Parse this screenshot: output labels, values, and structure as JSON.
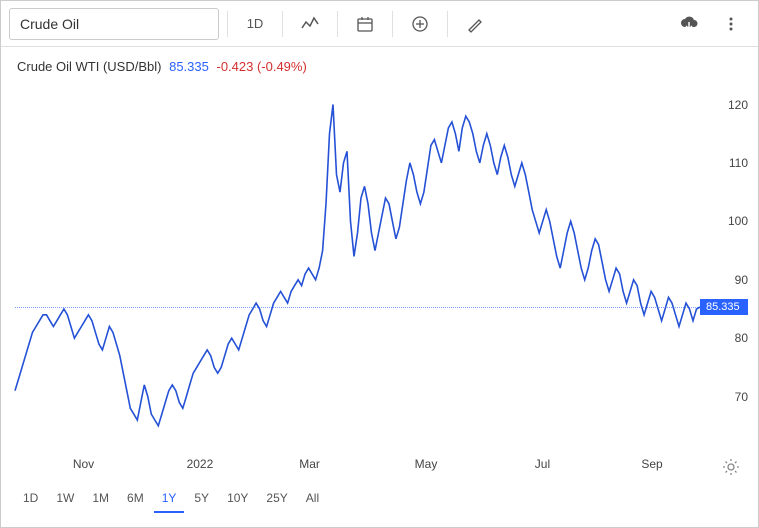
{
  "toolbar": {
    "symbol_value": "Crude Oil",
    "interval_label": "1D"
  },
  "header": {
    "name": "Crude Oil WTI (USD/Bbl)",
    "price": "85.335",
    "change": "-0.423 (-0.49%)"
  },
  "chart": {
    "type": "line",
    "line_color": "#2451d6",
    "line_width": 1.6,
    "background_color": "#ffffff",
    "current_price": 85.335,
    "current_line_color": "#2962ff",
    "y_axis": {
      "min": 60,
      "max": 123,
      "ticks": [
        70,
        80,
        90,
        100,
        110,
        120
      ],
      "fontsize": 12,
      "color": "#444444"
    },
    "x_axis": {
      "ticks": [
        {
          "pos": 0.1,
          "label": "Nov"
        },
        {
          "pos": 0.27,
          "label": "2022"
        },
        {
          "pos": 0.43,
          "label": "Mar"
        },
        {
          "pos": 0.6,
          "label": "May"
        },
        {
          "pos": 0.77,
          "label": "Jul"
        },
        {
          "pos": 0.93,
          "label": "Sep"
        }
      ],
      "fontsize": 12,
      "color": "#444444"
    },
    "series": [
      71,
      73,
      75,
      77,
      79,
      81,
      82,
      83,
      84,
      84,
      83,
      82,
      83,
      84,
      85,
      84,
      82,
      80,
      81,
      82,
      83,
      84,
      83,
      81,
      79,
      78,
      80,
      82,
      81,
      79,
      77,
      74,
      71,
      68,
      67,
      66,
      69,
      72,
      70,
      67,
      66,
      65,
      67,
      69,
      71,
      72,
      71,
      69,
      68,
      70,
      72,
      74,
      75,
      76,
      77,
      78,
      77,
      75,
      74,
      75,
      77,
      79,
      80,
      79,
      78,
      80,
      82,
      84,
      85,
      86,
      85,
      83,
      82,
      84,
      86,
      87,
      88,
      87,
      86,
      88,
      89,
      90,
      89,
      91,
      92,
      91,
      90,
      92,
      95,
      103,
      115,
      120,
      108,
      105,
      110,
      112,
      100,
      94,
      98,
      104,
      106,
      103,
      98,
      95,
      98,
      101,
      104,
      103,
      100,
      97,
      99,
      103,
      107,
      110,
      108,
      105,
      103,
      105,
      109,
      113,
      114,
      112,
      110,
      113,
      116,
      117,
      115,
      112,
      116,
      118,
      117,
      115,
      112,
      110,
      113,
      115,
      113,
      110,
      108,
      111,
      113,
      111,
      108,
      106,
      108,
      110,
      108,
      105,
      102,
      100,
      98,
      100,
      102,
      100,
      97,
      94,
      92,
      95,
      98,
      100,
      98,
      95,
      92,
      90,
      92,
      95,
      97,
      96,
      93,
      90,
      88,
      90,
      92,
      91,
      88,
      86,
      88,
      90,
      89,
      86,
      84,
      86,
      88,
      87,
      85,
      83,
      85,
      87,
      86,
      84,
      82,
      84,
      86,
      85,
      83,
      85,
      85.335
    ]
  },
  "ranges": {
    "options": [
      "1D",
      "1W",
      "1M",
      "6M",
      "1Y",
      "5Y",
      "10Y",
      "25Y",
      "All"
    ],
    "active": "1Y"
  }
}
